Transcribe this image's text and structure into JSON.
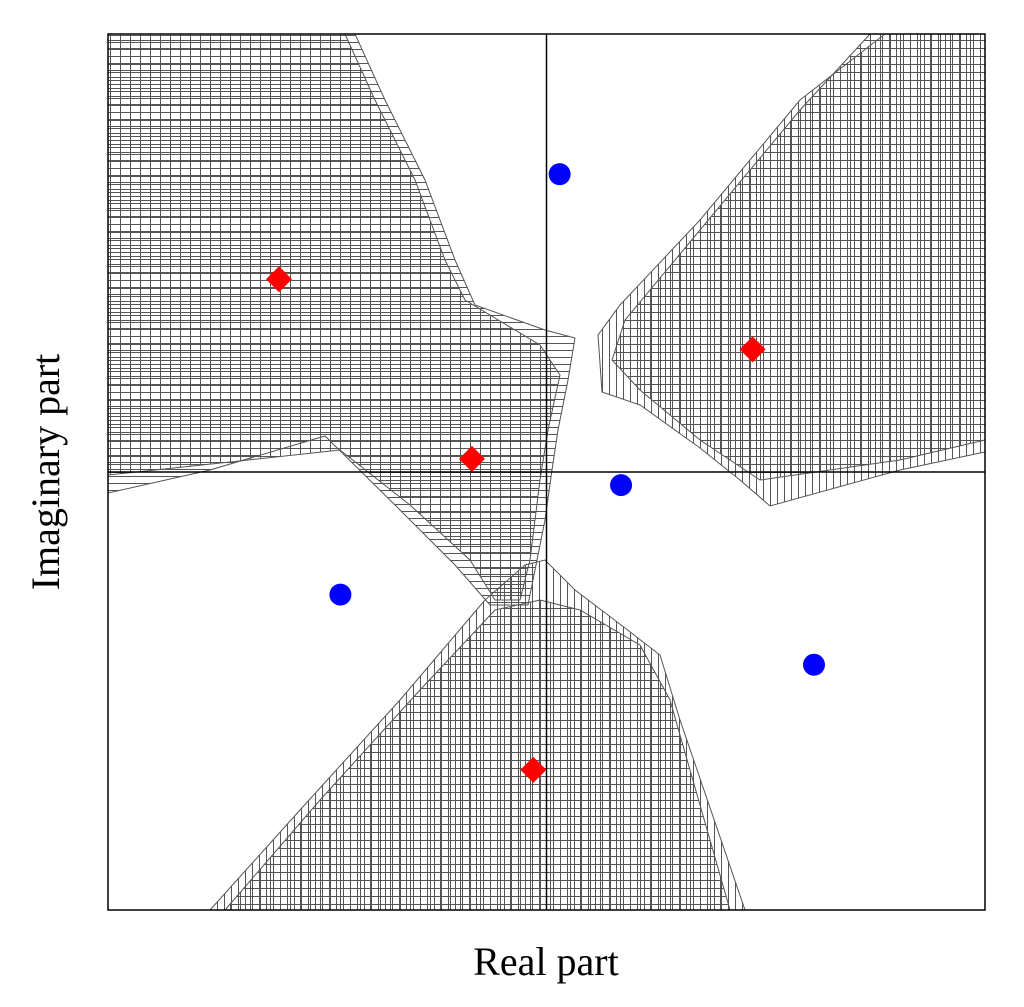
{
  "chart_data": {
    "type": "scatter",
    "xlabel": "Real part",
    "ylabel": "Imaginary part",
    "xlim": [
      -1,
      1
    ],
    "ylim": [
      -1,
      1
    ],
    "origin_axes": true,
    "series": [
      {
        "color": "#0000ff",
        "marker": "circle",
        "x": [
          0.03,
          0.17,
          -0.47,
          0.61
        ],
        "values": [
          0.68,
          -0.03,
          -0.28,
          -0.44
        ]
      },
      {
        "color": "#ff0000",
        "marker": "diamond",
        "x": [
          -0.61,
          0.47,
          -0.17,
          -0.03
        ],
        "values": [
          0.44,
          0.28,
          0.03,
          -0.68
        ]
      }
    ]
  }
}
